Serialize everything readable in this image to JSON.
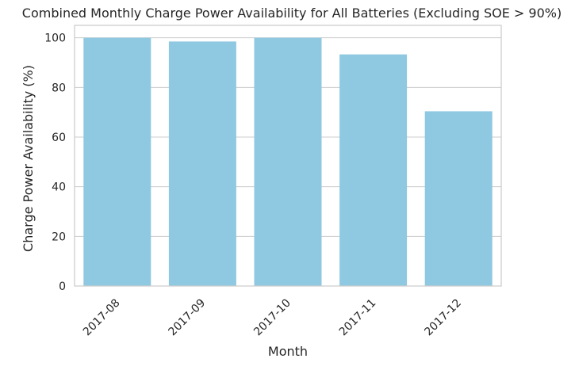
{
  "chart_data": {
    "type": "bar",
    "title": "Combined Monthly Charge Power Availability for All Batteries (Excluding SOE > 90%)",
    "xlabel": "Month",
    "ylabel": "Charge Power Availability (%)",
    "categories": [
      "2017-08",
      "2017-09",
      "2017-10",
      "2017-11",
      "2017-12"
    ],
    "values": [
      100.0,
      98.5,
      100.0,
      93.3,
      70.4
    ],
    "ylim": [
      0,
      105
    ],
    "yticks": [
      0,
      20,
      40,
      60,
      80,
      100
    ],
    "grid": "horizontal",
    "x_tick_rotation": 45,
    "colors": {
      "bar": "#8fc9e1",
      "grid": "#cccccc",
      "spine": "#cccccc",
      "background": "#ffffff"
    }
  }
}
